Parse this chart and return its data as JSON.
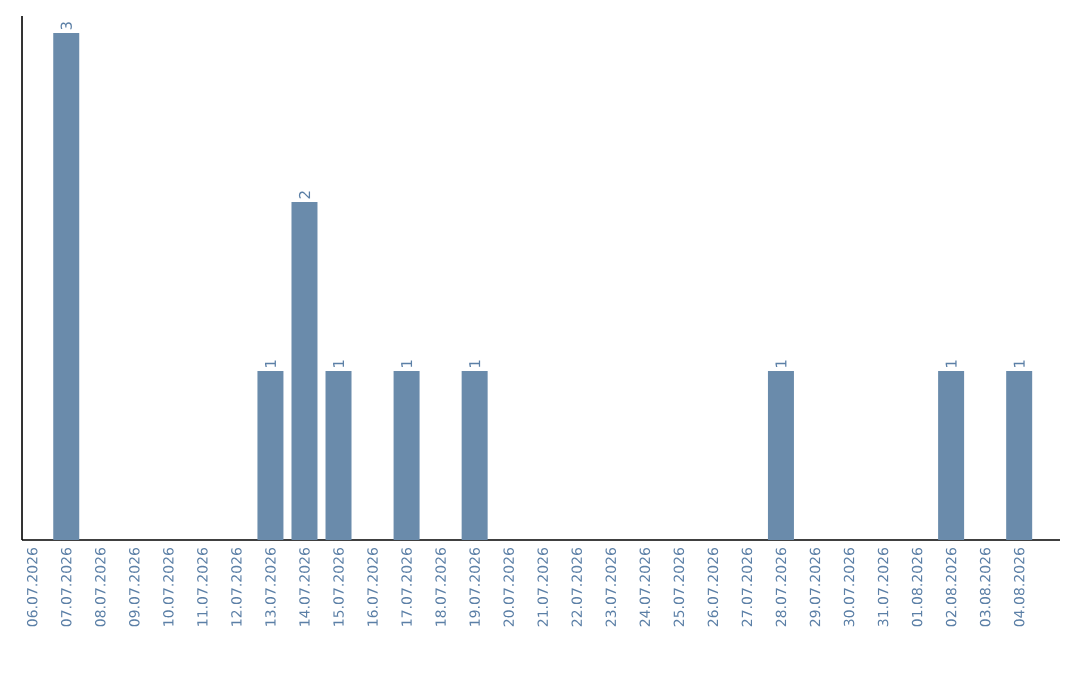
{
  "chart_data": {
    "type": "bar",
    "categories": [
      "06.07.2026",
      "07.07.2026",
      "08.07.2026",
      "09.07.2026",
      "10.07.2026",
      "11.07.2026",
      "12.07.2026",
      "13.07.2026",
      "14.07.2026",
      "15.07.2026",
      "16.07.2026",
      "17.07.2026",
      "18.07.2026",
      "19.07.2026",
      "20.07.2026",
      "21.07.2026",
      "22.07.2026",
      "23.07.2026",
      "24.07.2026",
      "25.07.2026",
      "26.07.2026",
      "27.07.2026",
      "28.07.2026",
      "29.07.2026",
      "30.07.2026",
      "31.07.2026",
      "01.08.2026",
      "02.08.2026",
      "03.08.2026",
      "04.08.2026"
    ],
    "values": [
      0,
      3,
      0,
      0,
      0,
      0,
      0,
      1,
      2,
      1,
      0,
      1,
      0,
      1,
      0,
      0,
      0,
      0,
      0,
      0,
      0,
      0,
      1,
      0,
      0,
      0,
      0,
      1,
      0,
      1
    ],
    "value_labels": [
      null,
      "3",
      null,
      null,
      null,
      null,
      null,
      "1",
      "2",
      "1",
      null,
      "1",
      null,
      "1",
      null,
      null,
      null,
      null,
      null,
      null,
      null,
      null,
      "1",
      null,
      null,
      null,
      null,
      "1",
      null,
      "1"
    ],
    "color": "#6a8bab",
    "ylim": [
      0,
      3.1
    ],
    "tick_labels": "x",
    "grid": false
  }
}
